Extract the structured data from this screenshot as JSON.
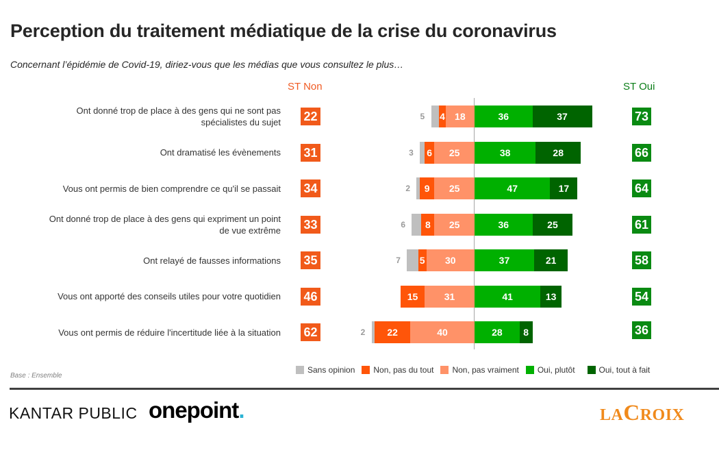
{
  "title": "Perception du traitement médiatique de la crise du coronavirus",
  "subtitle": "Concernant l’épidémie de Covid-19, diriez-vous que les médias que vous consultez le plus…",
  "base_note": "Base : Ensemble",
  "logos": {
    "kantar": "KANTAR PUBLIC",
    "onepoint": "onepoint",
    "onepoint_dot": ".",
    "lacroix_la": "LA",
    "lacroix_c": "C",
    "lacroix_roix": "ROIX"
  },
  "colors": {
    "sans_opinion": "#bfbfbf",
    "non_pas_du_tout": "#ff5509",
    "non_pas_vraiment": "#ff9268",
    "oui_plutot": "#00b000",
    "oui_tout_a_fait": "#006400",
    "st_non": "#f15a1a",
    "st_oui": "#0a8a12"
  },
  "chart_data": {
    "type": "bar",
    "subtype": "diverging-stacked-horizontal",
    "title": "Perception du traitement médiatique de la crise du coronavirus",
    "subtitle": "Concernant l’épidémie de Covid-19, diriez-vous que les médias que vous consultez le plus…",
    "column_headers": {
      "st_non": "ST Non",
      "st_oui": "ST Oui"
    },
    "legend": [
      "Sans opinion",
      "Non, pas du tout",
      "Non, pas vraiment",
      "Oui, plutôt",
      "Oui, tout à fait"
    ],
    "legend_position": "bottom",
    "unit": "%",
    "categories": [
      "Ont donné trop de place à des gens qui ne sont pas spécialistes du sujet",
      "Ont dramatisé les évènements",
      "Vous ont permis de bien comprendre ce qu'il se passait",
      "Ont donné trop de place à des gens qui expriment un point de vue extrême",
      "Ont relayé de fausses informations",
      "Vous ont apporté des conseils utiles pour votre quotidien",
      "Vous ont permis de réduire l'incertitude liée à la situation"
    ],
    "category_lines": [
      [
        "Ont donné trop de place à des gens qui ne sont pas",
        "spécialistes du sujet"
      ],
      [
        "Ont dramatisé les évènements"
      ],
      [
        "Vous ont permis de bien comprendre ce qu'il se passait"
      ],
      [
        "Ont donné trop de place à des gens qui expriment un point",
        "de vue extrême"
      ],
      [
        "Ont relayé de fausses informations"
      ],
      [
        "Vous ont apporté des conseils utiles pour votre quotidien"
      ],
      [
        "Vous ont permis de réduire l'incertitude liée à la situation"
      ]
    ],
    "series": [
      {
        "name": "Sans opinion",
        "values": [
          5,
          3,
          2,
          6,
          7,
          0,
          2
        ]
      },
      {
        "name": "Non, pas du tout",
        "values": [
          4,
          6,
          9,
          8,
          5,
          15,
          22
        ]
      },
      {
        "name": "Non, pas vraiment",
        "values": [
          18,
          25,
          25,
          25,
          30,
          31,
          40
        ]
      },
      {
        "name": "Oui, plutôt",
        "values": [
          36,
          38,
          47,
          36,
          37,
          41,
          28
        ]
      },
      {
        "name": "Oui, tout à fait",
        "values": [
          37,
          28,
          17,
          25,
          21,
          13,
          8
        ]
      }
    ],
    "st_non": [
      22,
      31,
      34,
      33,
      35,
      46,
      62
    ],
    "st_oui": [
      73,
      66,
      64,
      61,
      58,
      54,
      36
    ]
  }
}
